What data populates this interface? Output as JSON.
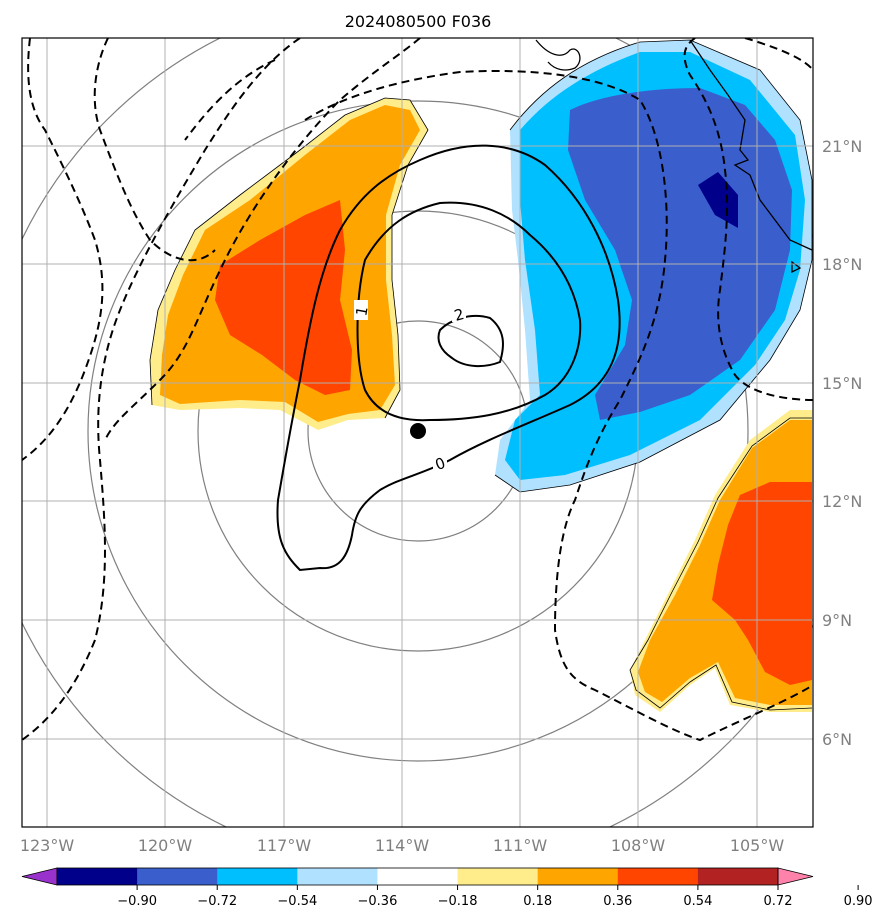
{
  "title": "2024080500 F036",
  "map": {
    "lon_labels": [
      "123°W",
      "120°W",
      "117°W",
      "114°W",
      "111°W",
      "108°W",
      "105°W"
    ],
    "lat_labels": [
      "21°N",
      "18°N",
      "15°N",
      "12°N",
      "9°N",
      "6°N"
    ],
    "contour_labels": [
      "2",
      "1",
      "0"
    ],
    "center_marker": {
      "lon": "113.6°W",
      "lat": "13.7°N"
    }
  },
  "colorbar": {
    "labels": [
      "−0.90",
      "−0.72",
      "−0.54",
      "−0.36",
      "−0.18",
      "0.18",
      "0.36",
      "0.54",
      "0.72",
      "0.90"
    ],
    "colors": [
      "#9932CC",
      "#00008B",
      "#3A5FCD",
      "#00BFFF",
      "#B0E2FF",
      "#FFFFFF",
      "#FFEC8B",
      "#FFA500",
      "#FF4500",
      "#B22222",
      "#FF82AB"
    ]
  }
}
